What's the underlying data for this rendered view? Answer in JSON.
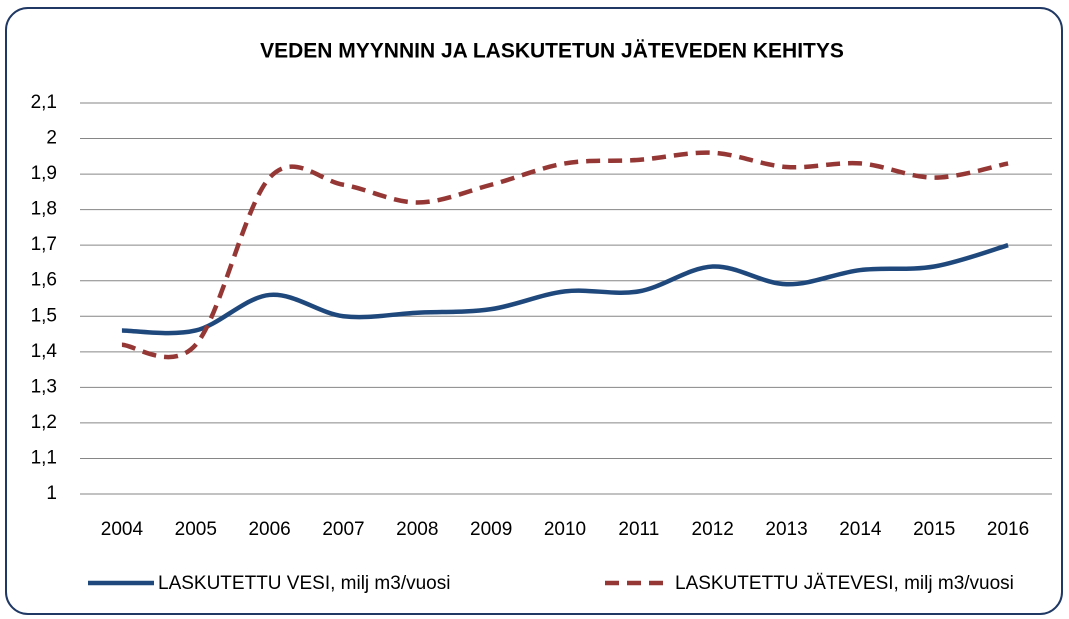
{
  "chart_data": {
    "type": "line",
    "title": "VEDEN MYYNNIN JA LASKUTETUN JÄTEVEDEN KEHITYS",
    "categories": [
      "2004",
      "2005",
      "2006",
      "2007",
      "2008",
      "2009",
      "2010",
      "2011",
      "2012",
      "2013",
      "2014",
      "2015",
      "2016"
    ],
    "series": [
      {
        "name": "LASKUTETTU VESI, milj m3/vuosi",
        "color": "#1f497d",
        "dash": false,
        "values": [
          1.46,
          1.46,
          1.56,
          1.5,
          1.51,
          1.52,
          1.57,
          1.57,
          1.64,
          1.59,
          1.63,
          1.64,
          1.7
        ]
      },
      {
        "name": "LASKUTETTU JÄTEVESI, milj m3/vuosi",
        "color": "#953735",
        "dash": true,
        "values": [
          1.42,
          1.42,
          1.89,
          1.87,
          1.82,
          1.87,
          1.93,
          1.94,
          1.96,
          1.92,
          1.93,
          1.89,
          1.93
        ]
      }
    ],
    "ylim": [
      1,
      2.1
    ],
    "yticks": [
      1,
      {
        "value": 1.1,
        "label": "1,1"
      },
      {
        "value": 1.2,
        "label": "1,2"
      },
      {
        "value": 1.3,
        "label": "1,3"
      },
      {
        "value": 1.4,
        "label": "1,4"
      },
      {
        "value": 1.5,
        "label": "1,5"
      },
      {
        "value": 1.6,
        "label": "1,6"
      },
      {
        "value": 1.7,
        "label": "1,7"
      },
      {
        "value": 1.8,
        "label": "1,8"
      },
      {
        "value": 1.9,
        "label": "1,9"
      },
      2,
      {
        "value": 2.1,
        "label": "2,1"
      }
    ],
    "grid": true,
    "legend": "bottom"
  }
}
